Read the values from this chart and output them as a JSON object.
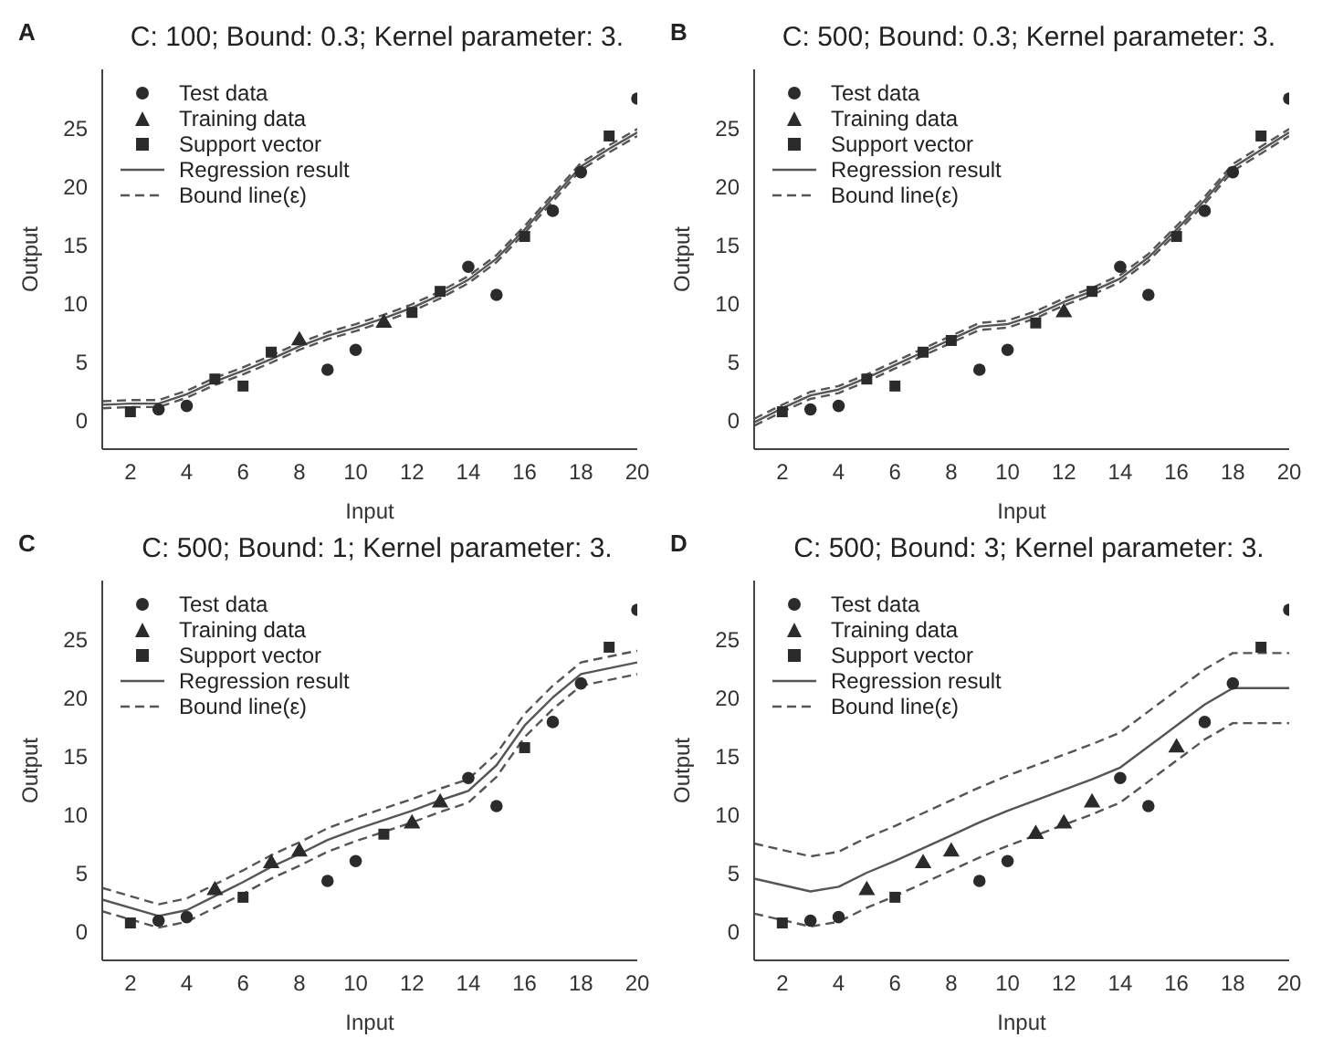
{
  "chart_data": [
    {
      "type": "scatter",
      "title": "C: 100; Bound: 0.3; Kernel parameter: 3.",
      "xlabel": "Input",
      "ylabel": "Output",
      "annotations": [
        "A"
      ],
      "xlim": [
        1,
        20
      ],
      "ylim": [
        -2.5,
        30
      ],
      "xticks": [
        2,
        4,
        6,
        8,
        10,
        12,
        14,
        16,
        18,
        20
      ],
      "yticks": [
        0,
        5,
        10,
        15,
        20,
        25
      ],
      "legend": "top left",
      "grid": false,
      "series": [
        {
          "name": "Test data",
          "marker": "circle",
          "color": "#2b2b2b",
          "x": [
            3,
            4,
            9,
            10,
            14,
            15,
            17,
            18,
            20
          ],
          "values": [
            0.9,
            1.2,
            4.3,
            6.0,
            13.1,
            10.7,
            17.9,
            21.2,
            27.5
          ]
        },
        {
          "name": "Training data",
          "marker": "triangle",
          "color": "#2b2b2b",
          "x": [
            8,
            11
          ],
          "values": [
            6.8,
            8.3
          ]
        },
        {
          "name": "Support vector",
          "marker": "square",
          "color": "#2b2b2b",
          "x": [
            2,
            5,
            6,
            7,
            12,
            13,
            16,
            19
          ],
          "values": [
            0.7,
            3.5,
            2.9,
            5.8,
            9.2,
            11.0,
            15.7,
            24.3
          ]
        },
        {
          "name": "Regression result",
          "type": "line",
          "line_style": "solid",
          "color": "#555555",
          "x": [
            1,
            2,
            3,
            4,
            5,
            6,
            7,
            8,
            9,
            10,
            11,
            12,
            13,
            14,
            15,
            16,
            17,
            18,
            19,
            20
          ],
          "values": [
            1.3,
            1.4,
            1.4,
            2.2,
            3.3,
            4.2,
            5.2,
            6.3,
            7.2,
            7.9,
            8.7,
            9.6,
            10.7,
            12.0,
            13.8,
            16.3,
            19.0,
            21.7,
            23.2,
            24.6
          ]
        },
        {
          "name": "Bound line(ε)",
          "type": "line",
          "line_style": "dashed",
          "color": "#555555",
          "x": [
            1,
            2,
            3,
            4,
            5,
            6,
            7,
            8,
            9,
            10,
            11,
            12,
            13,
            14,
            15,
            16,
            17,
            18,
            19,
            20
          ],
          "values": [
            1.6,
            1.7,
            1.7,
            2.5,
            3.6,
            4.5,
            5.5,
            6.6,
            7.5,
            8.2,
            9.0,
            9.9,
            11.0,
            12.3,
            14.1,
            16.6,
            19.3,
            22.0,
            23.5,
            24.9
          ]
        },
        {
          "type": "line",
          "line_style": "dashed",
          "color": "#555555",
          "x": [
            1,
            2,
            3,
            4,
            5,
            6,
            7,
            8,
            9,
            10,
            11,
            12,
            13,
            14,
            15,
            16,
            17,
            18,
            19,
            20
          ],
          "values": [
            1.0,
            1.1,
            1.1,
            1.9,
            3.0,
            3.9,
            4.9,
            6.0,
            6.9,
            7.6,
            8.4,
            9.3,
            10.4,
            11.7,
            13.5,
            16.0,
            18.7,
            21.4,
            22.9,
            24.3
          ]
        }
      ]
    },
    {
      "type": "scatter",
      "title": "C: 500; Bound: 0.3; Kernel parameter: 3.",
      "xlabel": "Input",
      "ylabel": "Output",
      "annotations": [
        "B"
      ],
      "xlim": [
        1,
        20
      ],
      "ylim": [
        -2.5,
        30
      ],
      "xticks": [
        2,
        4,
        6,
        8,
        10,
        12,
        14,
        16,
        18,
        20
      ],
      "yticks": [
        0,
        5,
        10,
        15,
        20,
        25
      ],
      "legend": "top left",
      "grid": false,
      "series": [
        {
          "name": "Test data",
          "type": "scatter",
          "marker": "circle",
          "color": "#2b2b2b",
          "x": [
            3,
            4,
            9,
            10,
            14,
            15,
            17,
            18,
            20
          ],
          "values": [
            0.9,
            1.2,
            4.3,
            6.0,
            13.1,
            10.7,
            17.9,
            21.2,
            27.5
          ]
        },
        {
          "name": "Training data",
          "marker": "triangle",
          "color": "#2b2b2b",
          "x": [
            12
          ],
          "values": [
            9.2
          ]
        },
        {
          "name": "Support vector",
          "marker": "square",
          "color": "#2b2b2b",
          "x": [
            2,
            5,
            6,
            7,
            8,
            11,
            13,
            16,
            19
          ],
          "values": [
            0.7,
            3.5,
            2.9,
            5.8,
            6.8,
            8.3,
            11.0,
            15.7,
            24.3
          ]
        },
        {
          "name": "Regression result",
          "type": "line",
          "line_style": "solid",
          "color": "#555555",
          "x": [
            1,
            2,
            3,
            4,
            5,
            6,
            7,
            8,
            9,
            10,
            11,
            12,
            13,
            14,
            15,
            16,
            17,
            18,
            19,
            20
          ],
          "values": [
            -0.2,
            1.0,
            2.1,
            2.6,
            3.6,
            4.7,
            5.8,
            6.9,
            8.0,
            8.2,
            9.0,
            10.1,
            11.0,
            12.1,
            13.9,
            16.3,
            18.8,
            21.6,
            23.1,
            24.6
          ]
        },
        {
          "name": "Bound line(ε)",
          "type": "line",
          "line_style": "dashed",
          "color": "#555555",
          "x": [
            1,
            2,
            3,
            4,
            5,
            6,
            7,
            8,
            9,
            10,
            11,
            12,
            13,
            14,
            15,
            16,
            17,
            18,
            19,
            20
          ],
          "values": [
            0.1,
            1.3,
            2.4,
            2.9,
            3.9,
            5.0,
            6.1,
            7.2,
            8.3,
            8.5,
            9.3,
            10.4,
            11.3,
            12.4,
            14.2,
            16.6,
            19.1,
            21.9,
            23.4,
            24.9
          ]
        },
        {
          "type": "line",
          "line_style": "dashed",
          "color": "#555555",
          "x": [
            1,
            2,
            3,
            4,
            5,
            6,
            7,
            8,
            9,
            10,
            11,
            12,
            13,
            14,
            15,
            16,
            17,
            18,
            19,
            20
          ],
          "values": [
            -0.5,
            0.7,
            1.8,
            2.3,
            3.3,
            4.4,
            5.5,
            6.6,
            7.7,
            7.9,
            8.7,
            9.8,
            10.7,
            11.8,
            13.6,
            16.0,
            18.5,
            21.3,
            22.8,
            24.3
          ]
        }
      ]
    },
    {
      "type": "scatter",
      "title": "C: 500; Bound: 1; Kernel parameter: 3.",
      "xlabel": "Input",
      "ylabel": "Output",
      "annotations": [
        "C"
      ],
      "xlim": [
        1,
        20
      ],
      "ylim": [
        -2.5,
        30
      ],
      "xticks": [
        2,
        4,
        6,
        8,
        10,
        12,
        14,
        16,
        18,
        20
      ],
      "yticks": [
        0,
        5,
        10,
        15,
        20,
        25
      ],
      "legend": "top left",
      "grid": false,
      "series": [
        {
          "name": "Test data",
          "type": "scatter",
          "marker": "circle",
          "color": "#2b2b2b",
          "x": [
            3,
            4,
            9,
            10,
            14,
            15,
            17,
            18,
            20
          ],
          "values": [
            0.9,
            1.2,
            4.3,
            6.0,
            13.1,
            10.7,
            17.9,
            21.2,
            27.5
          ]
        },
        {
          "name": "Training data",
          "marker": "triangle",
          "color": "#2b2b2b",
          "x": [
            5,
            7,
            8,
            12,
            13
          ],
          "values": [
            3.5,
            5.8,
            6.8,
            9.2,
            11.0
          ]
        },
        {
          "name": "Support vector",
          "marker": "square",
          "color": "#2b2b2b",
          "x": [
            2,
            6,
            11,
            16,
            19
          ],
          "values": [
            0.7,
            2.9,
            8.3,
            15.7,
            24.3
          ]
        },
        {
          "name": "Regression result",
          "type": "line",
          "line_style": "solid",
          "color": "#555555",
          "x": [
            1,
            3,
            4,
            5,
            6,
            7,
            8,
            9,
            10,
            11,
            12,
            13,
            14,
            15,
            16,
            17,
            18,
            20
          ],
          "values": [
            2.7,
            1.3,
            1.8,
            3.0,
            4.2,
            5.5,
            6.6,
            7.8,
            8.7,
            9.5,
            10.3,
            11.2,
            12.0,
            14.2,
            17.6,
            20.0,
            22.0,
            23.0
          ]
        },
        {
          "name": "Bound line(ε)",
          "type": "line",
          "line_style": "dashed",
          "color": "#555555",
          "x": [
            1,
            3,
            4,
            5,
            6,
            7,
            8,
            9,
            10,
            11,
            12,
            13,
            14,
            15,
            16,
            17,
            18,
            20
          ],
          "values": [
            3.7,
            2.3,
            2.8,
            4.0,
            5.2,
            6.5,
            7.6,
            8.8,
            9.7,
            10.5,
            11.3,
            12.2,
            13.0,
            15.2,
            18.6,
            21.0,
            23.0,
            24.0
          ]
        },
        {
          "type": "line",
          "line_style": "dashed",
          "color": "#555555",
          "x": [
            1,
            3,
            4,
            5,
            6,
            7,
            8,
            9,
            10,
            11,
            12,
            13,
            14,
            15,
            16,
            17,
            18,
            20
          ],
          "values": [
            1.7,
            0.3,
            0.8,
            2.0,
            3.2,
            4.5,
            5.6,
            6.8,
            7.7,
            8.5,
            9.3,
            10.2,
            11.0,
            13.2,
            16.6,
            19.0,
            21.0,
            22.0
          ]
        }
      ]
    },
    {
      "type": "scatter",
      "title": "C: 500; Bound: 3; Kernel parameter: 3.",
      "xlabel": "Input",
      "ylabel": "Output",
      "annotations": [
        "D"
      ],
      "xlim": [
        1,
        20
      ],
      "ylim": [
        -2.5,
        30
      ],
      "xticks": [
        2,
        4,
        6,
        8,
        10,
        12,
        14,
        16,
        18,
        20
      ],
      "yticks": [
        0,
        5,
        10,
        15,
        20,
        25
      ],
      "legend": "top left",
      "grid": false,
      "series": [
        {
          "name": "Test data",
          "type": "scatter",
          "marker": "circle",
          "color": "#2b2b2b",
          "x": [
            3,
            4,
            9,
            10,
            14,
            15,
            17,
            18,
            20
          ],
          "values": [
            0.9,
            1.2,
            4.3,
            6.0,
            13.1,
            10.7,
            17.9,
            21.2,
            27.5
          ]
        },
        {
          "name": "Training data",
          "marker": "triangle",
          "color": "#2b2b2b",
          "x": [
            5,
            7,
            8,
            11,
            12,
            13,
            16
          ],
          "values": [
            3.5,
            5.8,
            6.8,
            8.3,
            9.2,
            11.0,
            15.7
          ]
        },
        {
          "name": "Support vector",
          "marker": "square",
          "color": "#2b2b2b",
          "x": [
            2,
            6,
            19
          ],
          "values": [
            0.7,
            2.9,
            24.3
          ]
        },
        {
          "name": "Regression result",
          "type": "line",
          "line_style": "solid",
          "color": "#555555",
          "x": [
            1,
            3,
            4,
            5,
            6,
            7,
            8,
            9,
            10,
            11,
            12,
            13,
            14,
            15,
            16,
            17,
            18,
            20
          ],
          "values": [
            4.5,
            3.4,
            3.8,
            5.0,
            6.0,
            7.1,
            8.2,
            9.3,
            10.3,
            11.2,
            12.1,
            13.0,
            14.0,
            15.8,
            17.6,
            19.4,
            20.8,
            20.8
          ]
        },
        {
          "name": "Bound line(ε)",
          "type": "line",
          "line_style": "dashed",
          "color": "#555555",
          "x": [
            1,
            3,
            4,
            5,
            6,
            7,
            8,
            9,
            10,
            11,
            12,
            13,
            14,
            15,
            16,
            17,
            18,
            20
          ],
          "values": [
            7.5,
            6.4,
            6.8,
            8.0,
            9.0,
            10.1,
            11.2,
            12.3,
            13.3,
            14.2,
            15.1,
            16.0,
            17.0,
            18.8,
            20.6,
            22.4,
            23.8,
            23.8
          ]
        },
        {
          "type": "line",
          "line_style": "dashed",
          "color": "#555555",
          "x": [
            1,
            3,
            4,
            5,
            6,
            7,
            8,
            9,
            10,
            11,
            12,
            13,
            14,
            15,
            16,
            17,
            18,
            20
          ],
          "values": [
            1.5,
            0.4,
            0.8,
            2.0,
            3.0,
            4.1,
            5.2,
            6.3,
            7.3,
            8.2,
            9.1,
            10.0,
            11.0,
            12.8,
            14.6,
            16.4,
            17.8,
            17.8
          ]
        }
      ]
    }
  ]
}
